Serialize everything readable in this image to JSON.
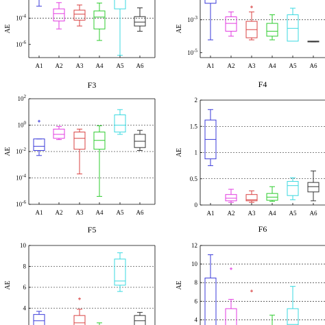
{
  "chart_data": [
    {
      "type": "box",
      "title": "",
      "ylabel": "AE",
      "yscale": "log",
      "ylim": [
        1e-07,
        0.01
      ],
      "yticks": [
        {
          "v": 0.0001,
          "b": "10",
          "e": "-4"
        },
        {
          "v": 1e-06,
          "b": "10",
          "e": "-6"
        }
      ],
      "grid": [
        0.0001
      ],
      "categories": [
        "A1",
        "A2",
        "A3",
        "A4",
        "A5",
        "A6"
      ],
      "colors": [
        "#3a3ad9",
        "#e23ae0",
        "#d94242",
        "#2ecc2e",
        "#3ad9e0",
        "#333333"
      ],
      "boxes": [
        {
          "min": 0.0008,
          "q1": 0.01,
          "med": 0.01,
          "q3": 0.01,
          "max": 0.01
        },
        {
          "min": 1.5e-05,
          "q1": 6e-05,
          "med": 0.00022,
          "q3": 0.0005,
          "max": 0.0015
        },
        {
          "min": 2.5e-05,
          "q1": 7e-05,
          "med": 0.0002,
          "q3": 0.0004,
          "max": 0.001
        },
        {
          "min": 2e-06,
          "q1": 1.5e-05,
          "med": 0.00012,
          "q3": 0.00035,
          "max": 0.0014
        },
        {
          "min": 1.5e-07,
          "q1": 0.0005,
          "med": 0.01,
          "q3": 0.01,
          "max": 0.01
        },
        {
          "min": 1e-05,
          "q1": 2.5e-05,
          "med": 5e-05,
          "q3": 0.00013,
          "max": 0.0006
        }
      ],
      "outliers": []
    },
    {
      "type": "box",
      "title": "",
      "ylabel": "AE",
      "yscale": "log",
      "ylim": [
        5e-06,
        0.05
      ],
      "yticks": [
        {
          "v": 0.001,
          "b": "10",
          "e": "-3"
        },
        {
          "v": 1e-05,
          "b": "10",
          "e": "-5"
        }
      ],
      "grid": [
        0.001
      ],
      "categories": [
        "A1",
        "A2",
        "A3",
        "A4",
        "A5",
        "A6"
      ],
      "colors": [
        "#3a3ad9",
        "#e23ae0",
        "#d94242",
        "#2ecc2e",
        "#3ad9e0",
        "#333333"
      ],
      "boxes": [
        {
          "min": 6e-05,
          "q1": 0.01,
          "med": 0.05,
          "q3": 0.05,
          "max": 0.05
        },
        {
          "min": 0.0001,
          "q1": 0.0002,
          "med": 0.0006,
          "q3": 0.0015,
          "max": 0.003
        },
        {
          "min": 6e-05,
          "q1": 8e-05,
          "med": 0.00025,
          "q3": 0.0008,
          "max": 0.003
        },
        {
          "min": 6e-05,
          "q1": 0.0001,
          "med": 0.0002,
          "q3": 0.0006,
          "max": 0.002
        },
        {
          "min": 5e-05,
          "q1": 5e-05,
          "med": 0.0003,
          "q3": 0.002,
          "max": 0.005
        },
        {
          "min": 4.5e-05,
          "q1": 4.5e-05,
          "med": 4.8e-05,
          "q3": 5e-05,
          "max": 5e-05
        }
      ],
      "outliers": [
        {
          "cat": 2,
          "v": 0.006
        }
      ]
    },
    {
      "type": "box",
      "title": "F3",
      "ylabel": "AE",
      "yscale": "log",
      "ylim": [
        1e-06,
        100
      ],
      "yticks": [
        {
          "v": 100,
          "b": "10",
          "e": "2"
        },
        {
          "v": 1,
          "b": "10",
          "e": "0"
        },
        {
          "v": 0.01,
          "b": "10",
          "e": "-2"
        },
        {
          "v": 0.0001,
          "b": "10",
          "e": "-4"
        },
        {
          "v": 1e-06,
          "b": "10",
          "e": "-6"
        }
      ],
      "grid": [
        1,
        0.01,
        0.0001
      ],
      "categories": [
        "A1",
        "A2",
        "A3",
        "A4",
        "A5",
        "A6"
      ],
      "colors": [
        "#3a3ad9",
        "#e23ae0",
        "#d94242",
        "#2ecc2e",
        "#3ad9e0",
        "#333333"
      ],
      "boxes": [
        {
          "min": 0.005,
          "q1": 0.012,
          "med": 0.025,
          "q3": 0.09,
          "max": 0.09
        },
        {
          "min": 0.08,
          "q1": 0.1,
          "med": 0.2,
          "q3": 0.5,
          "max": 0.8
        },
        {
          "min": 0.0002,
          "q1": 0.015,
          "med": 0.1,
          "q3": 0.3,
          "max": 0.5
        },
        {
          "min": 4e-06,
          "q1": 0.015,
          "med": 0.07,
          "q3": 0.3,
          "max": 0.9
        },
        {
          "min": 0.2,
          "q1": 0.3,
          "med": 1,
          "q3": 6,
          "max": 15
        },
        {
          "min": 0.012,
          "q1": 0.02,
          "med": 0.06,
          "q3": 0.2,
          "max": 0.4
        }
      ],
      "outliers": [
        {
          "cat": 0,
          "v": 2
        }
      ]
    },
    {
      "type": "box",
      "title": "F4",
      "ylabel": "AE",
      "yscale": "linear",
      "ylim": [
        0,
        2
      ],
      "yticks": [
        {
          "v": 0,
          "t": "0"
        },
        {
          "v": 0.5,
          "t": "0.5"
        },
        {
          "v": 1,
          "t": "1"
        },
        {
          "v": 1.5,
          "t": "1.5"
        },
        {
          "v": 2,
          "t": "2"
        }
      ],
      "grid": [
        0.5,
        1,
        1.5
      ],
      "categories": [
        "A1",
        "A2",
        "A3",
        "A4",
        "A5",
        "A6"
      ],
      "colors": [
        "#3a3ad9",
        "#e23ae0",
        "#d94242",
        "#2ecc2e",
        "#3ad9e0",
        "#333333"
      ],
      "boxes": [
        {
          "min": 0.75,
          "q1": 0.88,
          "med": 1.25,
          "q3": 1.62,
          "max": 1.82
        },
        {
          "min": 0.05,
          "q1": 0.08,
          "med": 0.13,
          "q3": 0.2,
          "max": 0.3
        },
        {
          "min": 0.05,
          "q1": 0.08,
          "med": 0.1,
          "q3": 0.2,
          "max": 0.27
        },
        {
          "min": 0.07,
          "q1": 0.09,
          "med": 0.15,
          "q3": 0.22,
          "max": 0.35
        },
        {
          "min": 0.1,
          "q1": 0.18,
          "med": 0.37,
          "q3": 0.45,
          "max": 0.52
        },
        {
          "min": 0.08,
          "q1": 0.25,
          "med": 0.35,
          "q3": 0.43,
          "max": 0.65
        }
      ],
      "outliers": []
    },
    {
      "type": "box",
      "title": "F5",
      "ylabel": "AE",
      "yscale": "linear",
      "ylim": [
        2,
        10
      ],
      "yticks": [
        {
          "v": 10,
          "t": "10"
        },
        {
          "v": 8,
          "t": "8"
        },
        {
          "v": 6,
          "t": "6"
        },
        {
          "v": 4,
          "t": "4"
        }
      ],
      "grid": [
        8,
        6,
        4
      ],
      "categories": [
        "A1",
        "A2",
        "A3",
        "A4",
        "A5",
        "A6"
      ],
      "colors": [
        "#3a3ad9",
        "#e23ae0",
        "#d94242",
        "#2ecc2e",
        "#3ad9e0",
        "#333333"
      ],
      "boxes": [
        {
          "min": 2,
          "q1": 2,
          "med": 2.8,
          "q3": 3.4,
          "max": 3.7
        },
        {
          "min": 2,
          "q1": 2,
          "med": 2,
          "q3": 2,
          "max": 2.3
        },
        {
          "min": 2,
          "q1": 2,
          "med": 2.6,
          "q3": 3.3,
          "max": 3.9
        },
        {
          "min": 2,
          "q1": 2,
          "med": 2,
          "q3": 2,
          "max": 2.6
        },
        {
          "min": 5.6,
          "q1": 6.2,
          "med": 6.6,
          "q3": 8.7,
          "max": 9.3
        },
        {
          "min": 2,
          "q1": 2,
          "med": 2.8,
          "q3": 3.3,
          "max": 3.6
        }
      ],
      "outliers": [
        {
          "cat": 2,
          "v": 4.9
        }
      ]
    },
    {
      "type": "box",
      "title": "F6",
      "ylabel": "AE",
      "yscale": "linear",
      "ylim": [
        3,
        12
      ],
      "yticks": [
        {
          "v": 12,
          "t": "12"
        },
        {
          "v": 10,
          "t": "10"
        },
        {
          "v": 8,
          "t": "8"
        },
        {
          "v": 6,
          "t": "6"
        },
        {
          "v": 4,
          "t": "4"
        }
      ],
      "grid": [
        10,
        8,
        6,
        4
      ],
      "categories": [
        "A1",
        "A2",
        "A3",
        "A4",
        "A5",
        "A6"
      ],
      "colors": [
        "#3a3ad9",
        "#e23ae0",
        "#d94242",
        "#2ecc2e",
        "#3ad9e0",
        "#333333"
      ],
      "boxes": [
        {
          "min": 3,
          "q1": 3,
          "med": 3,
          "q3": 8.5,
          "max": 11
        },
        {
          "min": 3,
          "q1": 3,
          "med": 3,
          "q3": 5.2,
          "max": 6.2
        },
        {
          "min": 3,
          "q1": 3,
          "med": 3,
          "q3": 3,
          "max": 3
        },
        {
          "min": 3,
          "q1": 3,
          "med": 3,
          "q3": 3,
          "max": 4.5
        },
        {
          "min": 3,
          "q1": 3,
          "med": 3.5,
          "q3": 5.2,
          "max": 7.6
        },
        {
          "min": 3,
          "q1": 3,
          "med": 3,
          "q3": 3,
          "max": 3
        }
      ],
      "outliers": [
        {
          "cat": 1,
          "v": 9.5
        },
        {
          "cat": 2,
          "v": 7.1
        }
      ]
    }
  ]
}
